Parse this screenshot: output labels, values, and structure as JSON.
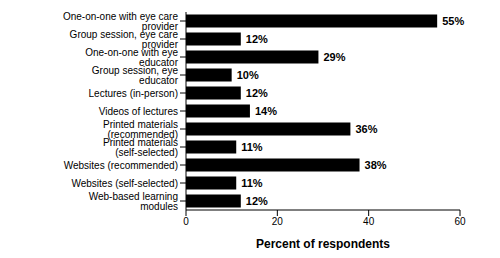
{
  "chart_data": {
    "type": "bar",
    "orientation": "horizontal",
    "categories": [
      "One-on-one with eye care provider",
      "Group session, eye care provider",
      "One-on-one with eye educator",
      "Group session, eye educator",
      "Lectures (in-person)",
      "Videos of lectures",
      "Printed materials (recommended)",
      "Printed materials (self-selected)",
      "Websites (recommended)",
      "Websites (self-selected)",
      "Web-based learning modules"
    ],
    "values": [
      55,
      12,
      29,
      10,
      12,
      14,
      36,
      11,
      38,
      11,
      12
    ],
    "value_labels": [
      "55%",
      "12%",
      "29%",
      "10%",
      "12%",
      "14%",
      "36%",
      "11%",
      "38%",
      "11%",
      "12%"
    ],
    "color": "#000000",
    "xlabel": "Percent of respondents",
    "xlim": [
      0,
      60
    ],
    "xticks": [
      0,
      20,
      40,
      60
    ],
    "data_labels": true,
    "grid": false
  }
}
